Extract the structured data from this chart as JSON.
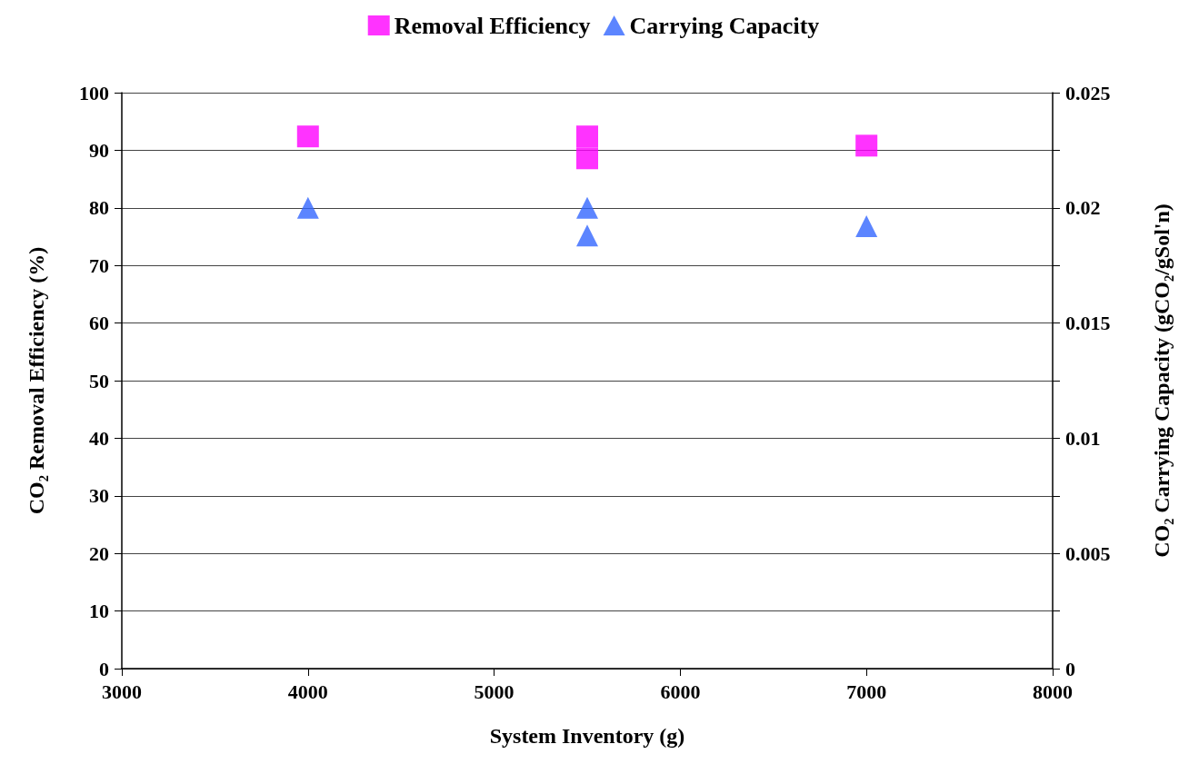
{
  "chart_data": {
    "type": "scatter",
    "xlabel": "System Inventory (g)",
    "ylabel": "CO₂ Removal Efficiency (%)",
    "y2label": "CO₂ Carrying Capacity (gCO₂/gSol'n)",
    "series": [
      {
        "name": "Removal Efficiency",
        "color": "#ff00ff",
        "marker": "square",
        "x": [
          4000,
          5500,
          5500,
          7000
        ],
        "values": [
          92.4,
          92.4,
          88.6,
          90.8
        ]
      },
      {
        "name": "Carrying Capacity",
        "color": "#3366ff",
        "marker": "triangle",
        "axis": "y2",
        "x": [
          4000,
          5500,
          5500,
          7000
        ],
        "values": [
          0.02,
          0.02,
          0.0188,
          0.0192
        ]
      }
    ],
    "xlim": [
      3000,
      8000
    ],
    "xticks": [
      3000,
      4000,
      5000,
      6000,
      7000,
      8000
    ],
    "ylim": [
      0,
      100
    ],
    "yticks": [
      0,
      10,
      20,
      30,
      40,
      50,
      60,
      70,
      80,
      90,
      100
    ],
    "y2lim": [
      0,
      0.025
    ],
    "y2ticks": [
      0,
      {
        "value": 0.0025,
        "label": null
      },
      0.005,
      {
        "value": 0.0075,
        "label": null
      },
      0.01,
      {
        "value": 0.0125,
        "label": null
      },
      0.015,
      {
        "value": 0.0175,
        "label": null
      },
      0.02,
      {
        "value": 0.0225,
        "label": null
      },
      0.025
    ],
    "grid": "y",
    "legend": "top"
  }
}
